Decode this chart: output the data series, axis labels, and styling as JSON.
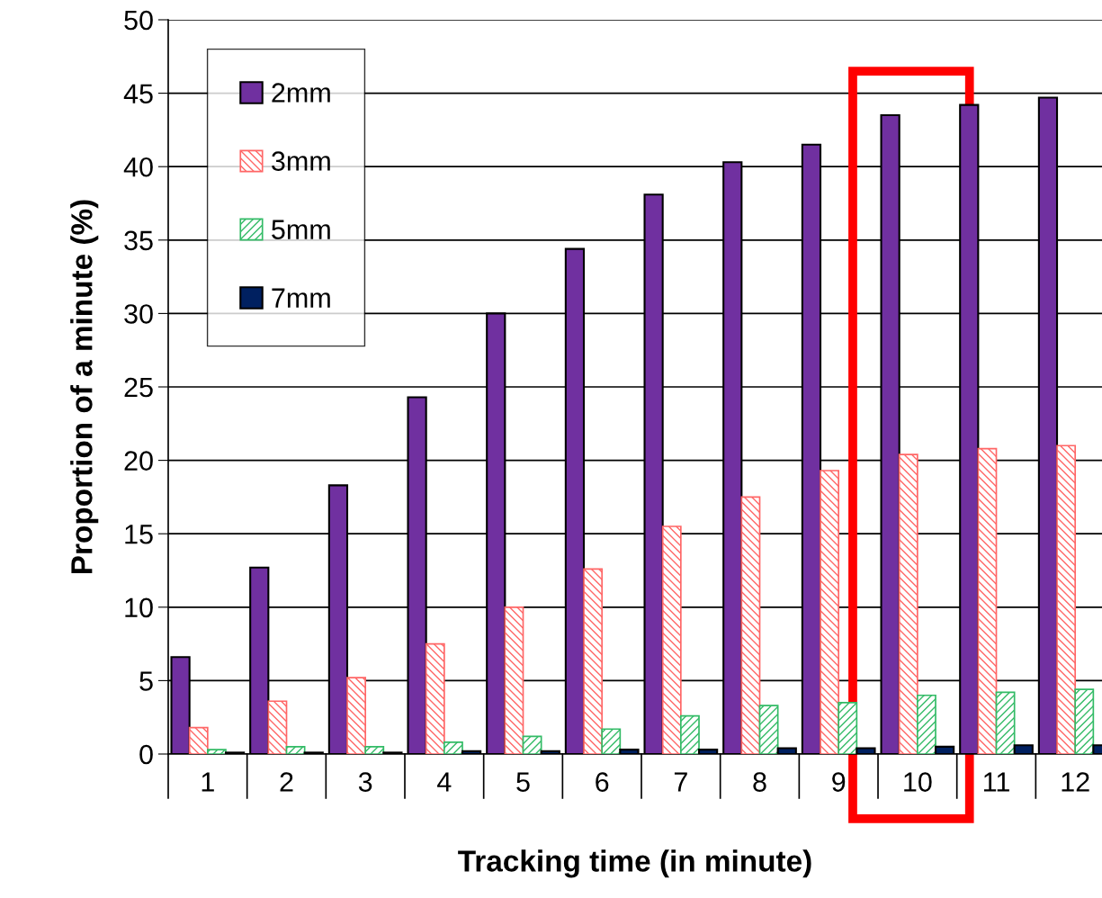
{
  "chart_data": {
    "type": "bar",
    "xlabel": "Tracking time (in minute)",
    "ylabel": "Proportion of a minute (%)",
    "categories": [
      "1",
      "2",
      "3",
      "4",
      "5",
      "6",
      "7",
      "8",
      "9",
      "10",
      "11",
      "12"
    ],
    "series": [
      {
        "name": "2mm",
        "color": "#7030a0",
        "values": [
          6.6,
          12.7,
          18.3,
          24.3,
          30.0,
          34.4,
          38.1,
          40.3,
          41.5,
          43.5,
          44.2,
          44.7
        ]
      },
      {
        "name": "3mm",
        "color": "#ff6666",
        "values": [
          1.8,
          3.6,
          5.2,
          7.5,
          10.0,
          12.6,
          15.5,
          17.5,
          19.3,
          20.4,
          20.8,
          21.0
        ]
      },
      {
        "name": "5mm",
        "color": "#33bb66",
        "values": [
          0.3,
          0.5,
          0.5,
          0.8,
          1.2,
          1.7,
          2.6,
          3.3,
          3.5,
          4.0,
          4.2,
          4.4
        ]
      },
      {
        "name": "7mm",
        "color": "#002060",
        "values": [
          0.1,
          0.1,
          0.1,
          0.2,
          0.2,
          0.3,
          0.3,
          0.4,
          0.4,
          0.5,
          0.6,
          0.6
        ]
      }
    ],
    "ylim": [
      0,
      50
    ],
    "yticks": [
      0,
      5,
      10,
      15,
      20,
      25,
      30,
      35,
      40,
      45,
      50
    ],
    "grid": "y",
    "legend": "top left"
  }
}
